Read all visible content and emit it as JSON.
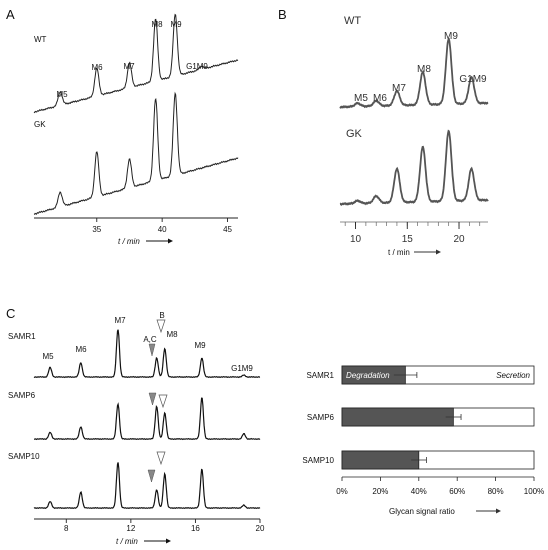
{
  "panels": {
    "a": "A",
    "b": "B",
    "c": "C"
  },
  "chart_data": [
    {
      "type": "line",
      "panel": "A",
      "xlabel": "t / min",
      "xticks": [
        35,
        40,
        45
      ],
      "xlim": [
        30.2,
        45.8
      ],
      "series": [
        {
          "name": "WT",
          "peaks": [
            {
              "label": "M5",
              "t": 32.2,
              "h": 0.22
            },
            {
              "label": "M6",
              "t": 35.0,
              "h": 0.45
            },
            {
              "label": "M7",
              "t": 37.5,
              "h": 0.4
            },
            {
              "label": "M8",
              "t": 39.5,
              "h": 1.0
            },
            {
              "label": "M9",
              "t": 41.0,
              "h": 1.0
            },
            {
              "label": "G1M9",
              "t": 43.0,
              "h": 0.05
            }
          ]
        },
        {
          "name": "GK",
          "peaks": [
            {
              "t": 32.2,
              "h": 0.18
            },
            {
              "t": 35.0,
              "h": 0.55
            },
            {
              "t": 37.5,
              "h": 0.35
            },
            {
              "t": 39.5,
              "h": 1.0
            },
            {
              "t": 41.0,
              "h": 1.0
            }
          ]
        }
      ]
    },
    {
      "type": "line",
      "panel": "B",
      "xlabel": "t / min",
      "xticks": [
        10,
        15,
        20
      ],
      "xlim": [
        8.5,
        22.8
      ],
      "series": [
        {
          "name": "WT",
          "peaks": [
            {
              "label": "M5",
              "t": 10.2,
              "h": 0.05
            },
            {
              "label": "M6",
              "t": 12.0,
              "h": 0.08
            },
            {
              "label": "M7",
              "t": 14.0,
              "h": 0.22
            },
            {
              "label": "M8",
              "t": 16.5,
              "h": 0.5
            },
            {
              "label": "M9",
              "t": 19.0,
              "h": 1.0
            },
            {
              "label": "G1M9",
              "t": 21.2,
              "h": 0.4
            }
          ]
        },
        {
          "name": "GK",
          "peaks": [
            {
              "t": 10.2,
              "h": 0.04
            },
            {
              "t": 12.0,
              "h": 0.1
            },
            {
              "t": 14.0,
              "h": 0.48
            },
            {
              "t": 16.5,
              "h": 0.78
            },
            {
              "t": 19.0,
              "h": 1.0
            },
            {
              "t": 21.2,
              "h": 0.45
            }
          ]
        }
      ]
    },
    {
      "type": "line",
      "panel": "C",
      "xlabel": "t / min",
      "xticks": [
        8,
        12,
        16,
        20
      ],
      "xlim": [
        6.0,
        20.0
      ],
      "annotations": {
        "A": "A,C",
        "B": "B"
      },
      "series": [
        {
          "name": "SAMR1",
          "peaks": [
            {
              "label": "M5",
              "t": 7.0,
              "h": 0.2
            },
            {
              "label": "M6",
              "t": 8.9,
              "h": 0.3
            },
            {
              "label": "M7",
              "t": 11.2,
              "h": 1.0
            },
            {
              "t": 13.6,
              "h": 0.4
            },
            {
              "label": "M8",
              "t": 14.1,
              "h": 0.6
            },
            {
              "label": "M9",
              "t": 16.4,
              "h": 0.4
            },
            {
              "label": "G1M9",
              "t": 19.0,
              "h": 0.04
            }
          ]
        },
        {
          "name": "SAMP6",
          "peaks": [
            {
              "t": 7.0,
              "h": 0.15
            },
            {
              "t": 8.9,
              "h": 0.28
            },
            {
              "t": 11.2,
              "h": 0.8
            },
            {
              "t": 13.6,
              "h": 0.75
            },
            {
              "t": 14.1,
              "h": 0.6
            },
            {
              "t": 16.4,
              "h": 0.95
            },
            {
              "t": 19.0,
              "h": 0.12
            }
          ]
        },
        {
          "name": "SAMP10",
          "peaks": [
            {
              "t": 7.0,
              "h": 0.14
            },
            {
              "t": 8.9,
              "h": 0.35
            },
            {
              "t": 11.2,
              "h": 1.0
            },
            {
              "t": 13.6,
              "h": 0.4
            },
            {
              "t": 14.1,
              "h": 0.75
            },
            {
              "t": 16.4,
              "h": 0.85
            },
            {
              "t": 19.0,
              "h": 0.06
            }
          ]
        }
      ]
    },
    {
      "type": "bar",
      "panel": "C",
      "orientation": "horizontal",
      "stacked": true,
      "categories": [
        "SAMR1",
        "SAMP6",
        "SAMP10"
      ],
      "series": [
        {
          "name": "Degradation",
          "values": [
            33,
            58,
            40
          ],
          "errors": [
            6,
            4,
            4
          ],
          "color": "#555555"
        },
        {
          "name": "Secretion",
          "values": [
            67,
            42,
            60
          ],
          "color": "#ffffff"
        }
      ],
      "xlim": [
        0,
        100
      ],
      "xticks": [
        "0%",
        "20%",
        "40%",
        "60%",
        "80%",
        "100%"
      ],
      "xlabel": "Glycan signal ratio"
    }
  ]
}
